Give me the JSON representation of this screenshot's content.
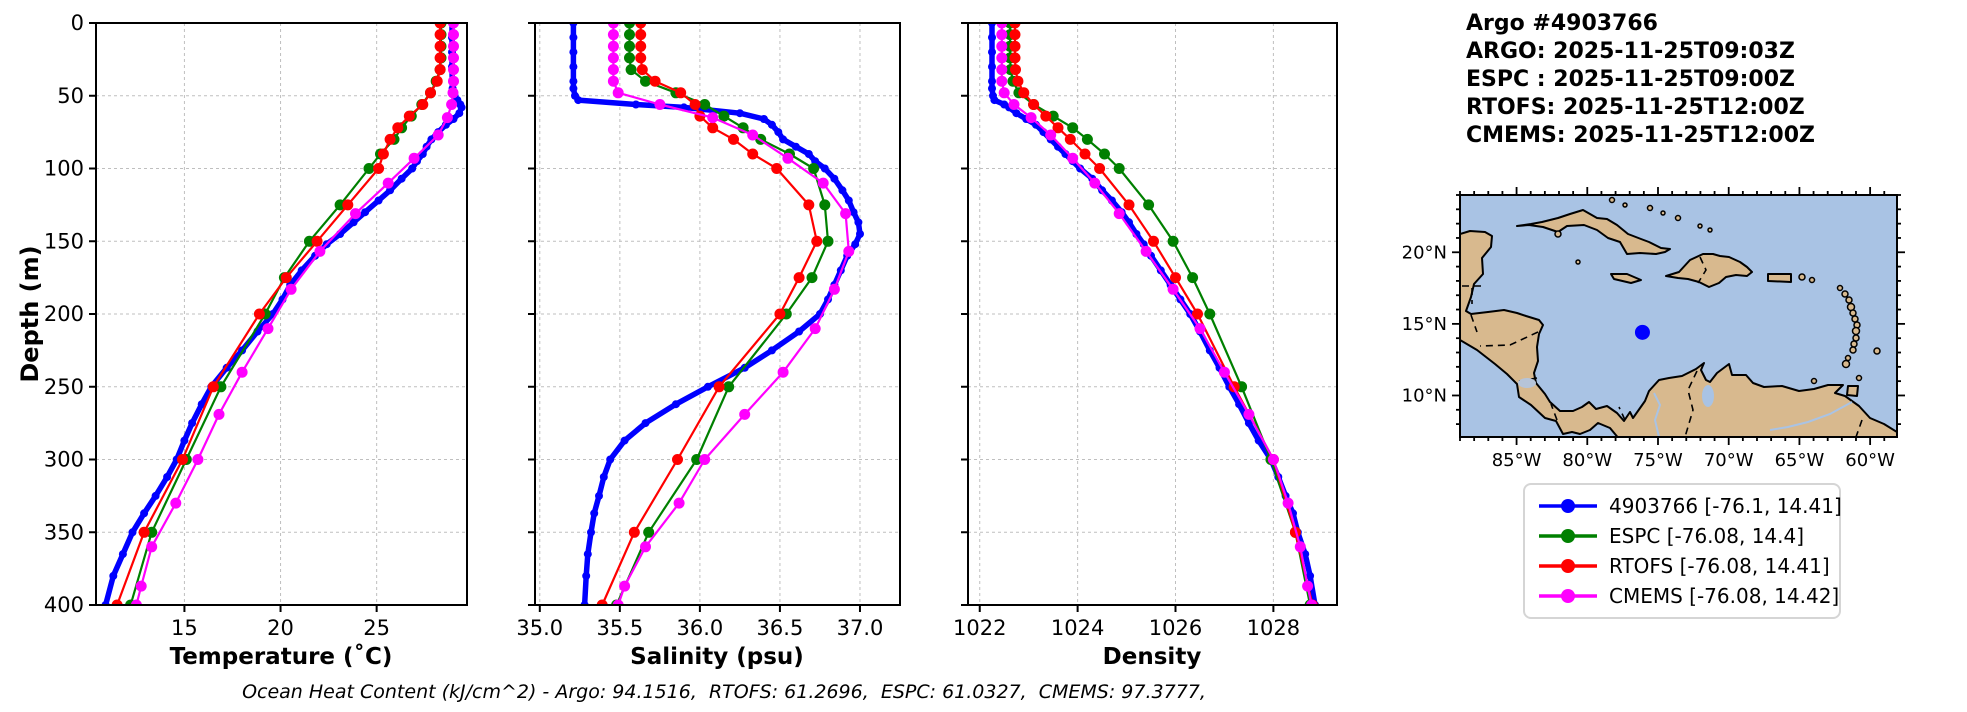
{
  "header": {
    "lines": [
      "Argo #4903766",
      "ARGO: 2025-11-25T09:03Z",
      "ESPC : 2025-11-25T09:00Z",
      "RTOFS: 2025-11-25T12:00Z",
      "CMEMS: 2025-11-25T12:00Z"
    ]
  },
  "footer": {
    "text": "Ocean Heat Content (kJ/cm^2) - Argo: 94.1516,  RTOFS: 61.2696,  ESPC: 61.0327,  CMEMS: 97.3777,"
  },
  "legend": {
    "items": [
      {
        "label": "4903766 [-76.1, 14.41]",
        "color": "#0000ff"
      },
      {
        "label": "ESPC [-76.08, 14.4]",
        "color": "#008000"
      },
      {
        "label": "RTOFS [-76.08, 14.41]",
        "color": "#ff0000"
      },
      {
        "label": "CMEMS [-76.08, 14.42]",
        "color": "#ff00ff"
      }
    ]
  },
  "map": {
    "lon_range": [
      -89,
      -58.1
    ],
    "lat_range": [
      7.1,
      24
    ],
    "lon_ticks": [
      {
        "value": -85,
        "label": "85°W"
      },
      {
        "value": -80,
        "label": "80°W"
      },
      {
        "value": -75,
        "label": "75°W"
      },
      {
        "value": -70,
        "label": "70°W"
      },
      {
        "value": -65,
        "label": "65°W"
      },
      {
        "value": -60,
        "label": "60°W"
      }
    ],
    "lat_ticks": [
      {
        "value": 20,
        "label": "20°N"
      },
      {
        "value": 15,
        "label": "15°N"
      },
      {
        "value": 10,
        "label": "10°N"
      }
    ],
    "marker": {
      "lon": -76.1,
      "lat": 14.41,
      "color": "#0000ff"
    },
    "ocean_color": "#a9c3e4",
    "land_color": "#d8b98e",
    "lake_color": "#a9c3e4"
  },
  "chart_data": {
    "type": "line",
    "orientation": "vertical-profile",
    "grid": true,
    "depth_axis": {
      "label": "Depth (m)",
      "range": [
        0,
        400
      ],
      "ticks": [
        0,
        50,
        100,
        150,
        200,
        250,
        300,
        350,
        400
      ]
    },
    "charts": [
      {
        "id": "temperature",
        "xlabel": "Temperature (˚C)",
        "xlim": [
          10.4,
          29.7
        ],
        "ticks": [
          15,
          20,
          25
        ],
        "tick_labels": [
          "15",
          "20",
          "25"
        ]
      },
      {
        "id": "salinity",
        "xlabel": "Salinity (psu)",
        "xlim": [
          34.97,
          37.25
        ],
        "ticks": [
          35.0,
          35.5,
          36.0,
          36.5,
          37.0
        ],
        "tick_labels": [
          "35.0",
          "35.5",
          "36.0",
          "36.5",
          "37.0"
        ]
      },
      {
        "id": "density",
        "xlabel": "Density",
        "xlim": [
          1021.76,
          1029.3
        ],
        "ticks": [
          1022,
          1024,
          1026,
          1028
        ],
        "tick_labels": [
          "1022",
          "1024",
          "1026",
          "1028"
        ]
      }
    ],
    "series": [
      {
        "name": "4903766",
        "color": "#0000ff",
        "line_width": 5.5,
        "marker_size": 4,
        "depths": [
          0,
          10,
          20,
          30,
          40,
          45,
          50,
          53,
          56,
          58,
          62,
          66,
          70,
          75,
          80,
          85,
          90,
          95,
          100,
          107,
          115,
          122,
          130,
          137,
          145,
          152,
          160,
          170,
          180,
          190,
          200,
          212,
          225,
          237,
          250,
          262,
          275,
          287,
          300,
          312,
          325,
          337,
          350,
          365,
          380,
          400
        ],
        "temperature": [
          28.92,
          28.92,
          28.92,
          28.92,
          28.93,
          28.95,
          29.05,
          29.2,
          29.35,
          29.42,
          29.3,
          29.0,
          28.6,
          28.2,
          27.85,
          27.6,
          27.4,
          27.1,
          26.85,
          26.3,
          25.7,
          25.1,
          24.4,
          23.8,
          23.1,
          22.4,
          21.8,
          21.1,
          20.5,
          20.1,
          19.6,
          18.8,
          18.0,
          17.2,
          16.4,
          15.9,
          15.4,
          15.0,
          14.6,
          14.1,
          13.5,
          12.9,
          12.3,
          11.8,
          11.3,
          10.9
        ],
        "salinity": [
          35.21,
          35.21,
          35.21,
          35.21,
          35.21,
          35.21,
          35.22,
          35.24,
          35.6,
          35.9,
          36.25,
          36.4,
          36.45,
          36.49,
          36.52,
          36.6,
          36.68,
          36.72,
          36.78,
          36.84,
          36.89,
          36.93,
          36.96,
          36.99,
          37.0,
          36.97,
          36.92,
          36.88,
          36.84,
          36.8,
          36.75,
          36.62,
          36.45,
          36.28,
          36.05,
          35.85,
          35.66,
          35.53,
          35.44,
          35.4,
          35.37,
          35.34,
          35.32,
          35.3,
          35.29,
          35.28
        ],
        "density": [
          1022.25,
          1022.25,
          1022.25,
          1022.25,
          1022.25,
          1022.25,
          1022.27,
          1022.3,
          1022.5,
          1022.6,
          1022.75,
          1022.95,
          1023.15,
          1023.3,
          1023.45,
          1023.6,
          1023.75,
          1023.9,
          1024.05,
          1024.3,
          1024.5,
          1024.7,
          1024.9,
          1025.05,
          1025.2,
          1025.35,
          1025.5,
          1025.7,
          1025.9,
          1026.1,
          1026.3,
          1026.5,
          1026.7,
          1026.9,
          1027.1,
          1027.3,
          1027.5,
          1027.7,
          1027.95,
          1028.1,
          1028.25,
          1028.4,
          1028.5,
          1028.65,
          1028.75,
          1028.85
        ]
      },
      {
        "name": "ESPC",
        "color": "#008000",
        "line_width": 2.2,
        "marker_size": 5.5,
        "depths": [
          0,
          8,
          16,
          24,
          32,
          40,
          48,
          56,
          64,
          72,
          80,
          90,
          100,
          125,
          150,
          175,
          200,
          250,
          300,
          350,
          400
        ],
        "temperature": [
          28.35,
          28.35,
          28.35,
          28.35,
          28.3,
          28.1,
          27.8,
          27.35,
          26.8,
          26.3,
          25.9,
          25.2,
          24.6,
          23.1,
          21.5,
          20.2,
          19.2,
          16.9,
          15.1,
          13.3,
          12.2
        ],
        "salinity": [
          35.56,
          35.56,
          35.56,
          35.56,
          35.57,
          35.66,
          35.85,
          36.03,
          36.15,
          36.27,
          36.38,
          36.56,
          36.71,
          36.78,
          36.8,
          36.7,
          36.54,
          36.18,
          35.98,
          35.68,
          35.48
        ],
        "density": [
          1022.62,
          1022.62,
          1022.62,
          1022.62,
          1022.63,
          1022.68,
          1022.8,
          1023.1,
          1023.5,
          1023.9,
          1024.2,
          1024.55,
          1024.85,
          1025.45,
          1025.95,
          1026.35,
          1026.7,
          1027.35,
          1027.95,
          1028.45,
          1028.75
        ]
      },
      {
        "name": "RTOFS",
        "color": "#ff0000",
        "line_width": 2.2,
        "marker_size": 5.5,
        "depths": [
          0,
          8,
          16,
          24,
          32,
          40,
          48,
          56,
          64,
          72,
          80,
          90,
          100,
          125,
          150,
          175,
          200,
          250,
          300,
          350,
          400
        ],
        "temperature": [
          28.3,
          28.3,
          28.3,
          28.3,
          28.3,
          28.15,
          27.8,
          27.4,
          26.7,
          26.1,
          25.7,
          25.35,
          25.1,
          23.5,
          21.9,
          20.3,
          18.9,
          16.5,
          14.9,
          12.9,
          11.5
        ],
        "salinity": [
          35.63,
          35.63,
          35.63,
          35.63,
          35.64,
          35.72,
          35.88,
          35.97,
          36.0,
          36.08,
          36.21,
          36.33,
          36.48,
          36.68,
          36.73,
          36.62,
          36.5,
          36.12,
          35.86,
          35.59,
          35.39
        ],
        "density": [
          1022.72,
          1022.72,
          1022.72,
          1022.72,
          1022.73,
          1022.78,
          1022.9,
          1023.1,
          1023.35,
          1023.6,
          1023.85,
          1024.15,
          1024.45,
          1025.05,
          1025.55,
          1026.0,
          1026.45,
          1027.2,
          1028.0,
          1028.45,
          1028.8
        ]
      },
      {
        "name": "CMEMS",
        "color": "#ff00ff",
        "line_width": 2.2,
        "marker_size": 5.5,
        "depths": [
          0,
          8,
          16,
          24,
          32,
          40,
          48,
          56,
          65,
          77,
          93,
          110,
          131,
          157,
          183,
          210,
          240,
          269,
          300,
          330,
          360,
          387,
          400
        ],
        "temperature": [
          29.0,
          29.0,
          29.0,
          29.0,
          29.0,
          29.0,
          28.97,
          28.9,
          28.68,
          28.2,
          26.95,
          25.6,
          23.9,
          22.05,
          20.55,
          19.35,
          18.0,
          16.8,
          15.7,
          14.55,
          13.3,
          12.75,
          12.5
        ],
        "salinity": [
          35.46,
          35.46,
          35.46,
          35.46,
          35.46,
          35.46,
          35.49,
          35.75,
          36.08,
          36.33,
          36.55,
          36.77,
          36.91,
          36.93,
          36.84,
          36.72,
          36.52,
          36.28,
          36.03,
          35.87,
          35.66,
          35.53,
          35.49
        ],
        "density": [
          1022.45,
          1022.45,
          1022.45,
          1022.45,
          1022.45,
          1022.45,
          1022.5,
          1022.7,
          1023.05,
          1023.45,
          1023.9,
          1024.35,
          1024.85,
          1025.4,
          1025.95,
          1026.5,
          1027.0,
          1027.5,
          1028.0,
          1028.3,
          1028.55,
          1028.7,
          1028.78
        ]
      }
    ]
  }
}
